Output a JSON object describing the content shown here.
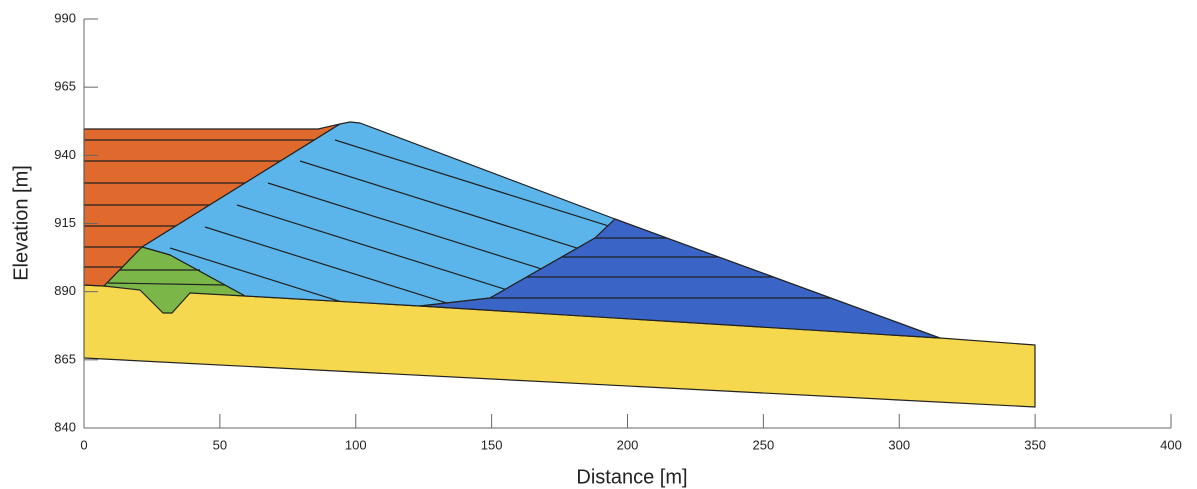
{
  "chart_data": {
    "type": "cross-section",
    "xlabel": "Distance [m]",
    "ylabel": "Elevation [m]",
    "xlim": [
      0,
      400
    ],
    "xticks": [
      0,
      50,
      100,
      150,
      200,
      250,
      300,
      350,
      400
    ],
    "ylim": [
      840,
      990
    ],
    "yticks": [
      840,
      865,
      890,
      915,
      940,
      965,
      990
    ]
  }
}
